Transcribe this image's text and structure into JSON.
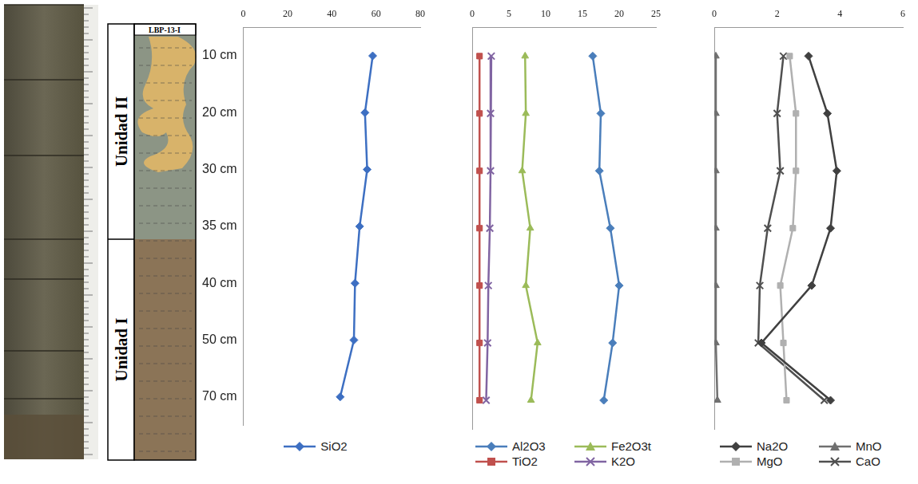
{
  "core_column": {
    "sample": "LBP-13-I",
    "units": [
      "Unidad II",
      "Unidad I"
    ]
  },
  "chart_data": [
    {
      "type": "line",
      "categories": [
        "10 cm",
        "20 cm",
        "30 cm",
        "35 cm",
        "40 cm",
        "50 cm",
        "70 cm"
      ],
      "series": [
        {
          "name": "SiO2",
          "color": "#3d6fc2",
          "marker": "diamond",
          "values": [
            58.5,
            55,
            56,
            52.6,
            50.5,
            50,
            43.8
          ]
        }
      ],
      "xlim": [
        0,
        80
      ],
      "xticks": [
        0,
        20,
        40,
        60,
        80
      ],
      "grid": false,
      "legend": "bottom"
    },
    {
      "type": "line",
      "categories": [
        "10 cm",
        "20 cm",
        "30 cm",
        "35 cm",
        "40 cm",
        "50 cm",
        "70 cm"
      ],
      "series": [
        {
          "name": "Al2O3",
          "color": "#4a7ebb",
          "marker": "diamond",
          "values": [
            16.4,
            17.5,
            17.3,
            18.8,
            20,
            19.1,
            17.9
          ]
        },
        {
          "name": "Fe2O3t",
          "color": "#9bbb59",
          "marker": "triangle",
          "values": [
            7.2,
            7.3,
            6.8,
            7.9,
            7.3,
            8.9,
            8.0
          ]
        },
        {
          "name": "TiO2",
          "color": "#c0504d",
          "marker": "square",
          "values": [
            1.0,
            1.0,
            1.0,
            1.0,
            1.0,
            1.0,
            1.0
          ]
        },
        {
          "name": "K2O",
          "color": "#8064a2",
          "marker": "x",
          "values": [
            2.6,
            2.5,
            2.5,
            2.4,
            2.2,
            2.1,
            1.9
          ]
        }
      ],
      "xlim": [
        0,
        25
      ],
      "xticks": [
        0,
        5,
        10,
        15,
        20,
        25
      ],
      "grid": false,
      "legend": "bottom",
      "tick_labels": "x"
    },
    {
      "type": "line",
      "categories": [
        "10 cm",
        "20 cm",
        "30 cm",
        "35 cm",
        "40 cm",
        "50 cm",
        "70 cm"
      ],
      "series": [
        {
          "name": "Na2O",
          "color": "#404040",
          "marker": "diamond",
          "values": [
            3.0,
            3.6,
            3.9,
            3.7,
            3.1,
            1.5,
            3.7
          ]
        },
        {
          "name": "MnO",
          "color": "#707070",
          "marker": "triangle",
          "values": [
            0.05,
            0.05,
            0.05,
            0.05,
            0.05,
            0.05,
            0.1
          ]
        },
        {
          "name": "MgO",
          "color": "#b0b0b0",
          "marker": "square",
          "values": [
            2.4,
            2.6,
            2.6,
            2.5,
            2.1,
            2.2,
            2.3
          ]
        },
        {
          "name": "CaO",
          "color": "#505050",
          "marker": "x",
          "values": [
            2.2,
            2.0,
            2.1,
            1.7,
            1.45,
            1.4,
            3.5
          ]
        }
      ],
      "xlim": [
        0,
        6
      ],
      "xticks": [
        0,
        2,
        4,
        6
      ],
      "grid": false,
      "legend": "bottom",
      "tick_labels": "x"
    }
  ]
}
